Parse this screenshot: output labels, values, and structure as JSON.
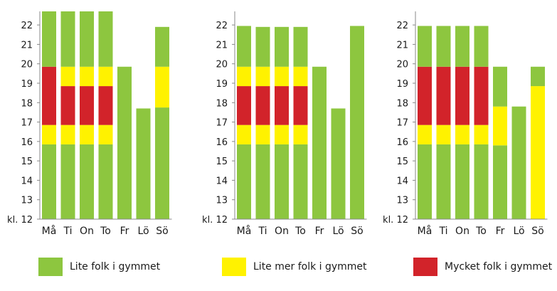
{
  "colors": {
    "low": "#8dc63f",
    "medium": "#fff200",
    "high": "#d2232a",
    "axis": "#888888"
  },
  "legend": {
    "low": "Lite folk i gymmet",
    "medium": "Lite mer folk i gymmet",
    "high": "Mycket folk i gymmet"
  },
  "chart_data": [
    {
      "type": "bar",
      "stacked": true,
      "categories": [
        "Må",
        "Ti",
        "On",
        "To",
        "Fr",
        "Lö",
        "Sö"
      ],
      "y_ticks": [
        "kl. 12",
        "13",
        "14",
        "15",
        "16",
        "17",
        "18",
        "19",
        "20",
        "21",
        "22"
      ],
      "ylim": [
        12,
        22.7
      ],
      "bars": [
        [
          {
            "from": 12,
            "to": 15.85,
            "level": "low"
          },
          {
            "from": 15.85,
            "to": 16.85,
            "level": "medium"
          },
          {
            "from": 16.85,
            "to": 19.85,
            "level": "high"
          },
          {
            "from": 19.85,
            "to": 22.7,
            "level": "low"
          }
        ],
        [
          {
            "from": 12,
            "to": 15.85,
            "level": "low"
          },
          {
            "from": 15.85,
            "to": 16.85,
            "level": "medium"
          },
          {
            "from": 16.85,
            "to": 18.85,
            "level": "high"
          },
          {
            "from": 18.85,
            "to": 19.85,
            "level": "medium"
          },
          {
            "from": 19.85,
            "to": 22.7,
            "level": "low"
          }
        ],
        [
          {
            "from": 12,
            "to": 15.85,
            "level": "low"
          },
          {
            "from": 15.85,
            "to": 16.85,
            "level": "medium"
          },
          {
            "from": 16.85,
            "to": 18.85,
            "level": "high"
          },
          {
            "from": 18.85,
            "to": 19.85,
            "level": "medium"
          },
          {
            "from": 19.85,
            "to": 22.7,
            "level": "low"
          }
        ],
        [
          {
            "from": 12,
            "to": 15.85,
            "level": "low"
          },
          {
            "from": 15.85,
            "to": 16.85,
            "level": "medium"
          },
          {
            "from": 16.85,
            "to": 18.85,
            "level": "high"
          },
          {
            "from": 18.85,
            "to": 19.85,
            "level": "medium"
          },
          {
            "from": 19.85,
            "to": 22.7,
            "level": "low"
          }
        ],
        [
          {
            "from": 12,
            "to": 19.85,
            "level": "low"
          }
        ],
        [
          {
            "from": 12,
            "to": 17.7,
            "level": "low"
          }
        ],
        [
          {
            "from": 12,
            "to": 17.75,
            "level": "low"
          },
          {
            "from": 17.75,
            "to": 19.85,
            "level": "medium"
          },
          {
            "from": 19.85,
            "to": 21.9,
            "level": "low"
          }
        ]
      ]
    },
    {
      "type": "bar",
      "stacked": true,
      "categories": [
        "Må",
        "Ti",
        "On",
        "To",
        "Fr",
        "Lö",
        "Sö"
      ],
      "y_ticks": [
        "kl. 12",
        "13",
        "14",
        "15",
        "16",
        "17",
        "18",
        "19",
        "20",
        "21",
        "22"
      ],
      "ylim": [
        12,
        22.7
      ],
      "bars": [
        [
          {
            "from": 12,
            "to": 15.85,
            "level": "low"
          },
          {
            "from": 15.85,
            "to": 16.85,
            "level": "medium"
          },
          {
            "from": 16.85,
            "to": 18.85,
            "level": "high"
          },
          {
            "from": 18.85,
            "to": 19.85,
            "level": "medium"
          },
          {
            "from": 19.85,
            "to": 21.95,
            "level": "low"
          }
        ],
        [
          {
            "from": 12,
            "to": 15.85,
            "level": "low"
          },
          {
            "from": 15.85,
            "to": 16.85,
            "level": "medium"
          },
          {
            "from": 16.85,
            "to": 18.85,
            "level": "high"
          },
          {
            "from": 18.85,
            "to": 19.85,
            "level": "medium"
          },
          {
            "from": 19.85,
            "to": 21.9,
            "level": "low"
          }
        ],
        [
          {
            "from": 12,
            "to": 15.85,
            "level": "low"
          },
          {
            "from": 15.85,
            "to": 16.85,
            "level": "medium"
          },
          {
            "from": 16.85,
            "to": 18.85,
            "level": "high"
          },
          {
            "from": 18.85,
            "to": 19.85,
            "level": "medium"
          },
          {
            "from": 19.85,
            "to": 21.9,
            "level": "low"
          }
        ],
        [
          {
            "from": 12,
            "to": 15.85,
            "level": "low"
          },
          {
            "from": 15.85,
            "to": 16.85,
            "level": "medium"
          },
          {
            "from": 16.85,
            "to": 18.85,
            "level": "high"
          },
          {
            "from": 18.85,
            "to": 19.85,
            "level": "medium"
          },
          {
            "from": 19.85,
            "to": 21.9,
            "level": "low"
          }
        ],
        [
          {
            "from": 12,
            "to": 19.85,
            "level": "low"
          }
        ],
        [
          {
            "from": 12,
            "to": 17.7,
            "level": "low"
          }
        ],
        [
          {
            "from": 12,
            "to": 21.95,
            "level": "low"
          }
        ]
      ]
    },
    {
      "type": "bar",
      "stacked": true,
      "categories": [
        "Må",
        "Ti",
        "On",
        "To",
        "Fr",
        "Lö",
        "Sö"
      ],
      "y_ticks": [
        "kl. 12",
        "13",
        "14",
        "15",
        "16",
        "17",
        "18",
        "19",
        "20",
        "21",
        "22"
      ],
      "ylim": [
        12,
        22.7
      ],
      "bars": [
        [
          {
            "from": 12,
            "to": 15.85,
            "level": "low"
          },
          {
            "from": 15.85,
            "to": 16.85,
            "level": "medium"
          },
          {
            "from": 16.85,
            "to": 19.85,
            "level": "high"
          },
          {
            "from": 19.85,
            "to": 21.95,
            "level": "low"
          }
        ],
        [
          {
            "from": 12,
            "to": 15.85,
            "level": "low"
          },
          {
            "from": 15.85,
            "to": 16.85,
            "level": "medium"
          },
          {
            "from": 16.85,
            "to": 19.85,
            "level": "high"
          },
          {
            "from": 19.85,
            "to": 21.95,
            "level": "low"
          }
        ],
        [
          {
            "from": 12,
            "to": 15.85,
            "level": "low"
          },
          {
            "from": 15.85,
            "to": 16.85,
            "level": "medium"
          },
          {
            "from": 16.85,
            "to": 19.85,
            "level": "high"
          },
          {
            "from": 19.85,
            "to": 21.95,
            "level": "low"
          }
        ],
        [
          {
            "from": 12,
            "to": 15.85,
            "level": "low"
          },
          {
            "from": 15.85,
            "to": 16.85,
            "level": "medium"
          },
          {
            "from": 16.85,
            "to": 19.85,
            "level": "high"
          },
          {
            "from": 19.85,
            "to": 21.95,
            "level": "low"
          }
        ],
        [
          {
            "from": 12,
            "to": 15.8,
            "level": "low"
          },
          {
            "from": 15.8,
            "to": 17.8,
            "level": "medium"
          },
          {
            "from": 17.8,
            "to": 19.85,
            "level": "low"
          }
        ],
        [
          {
            "from": 12,
            "to": 17.8,
            "level": "low"
          }
        ],
        [
          {
            "from": 12,
            "to": 18.85,
            "level": "medium"
          },
          {
            "from": 18.85,
            "to": 19.85,
            "level": "low"
          }
        ]
      ]
    }
  ]
}
